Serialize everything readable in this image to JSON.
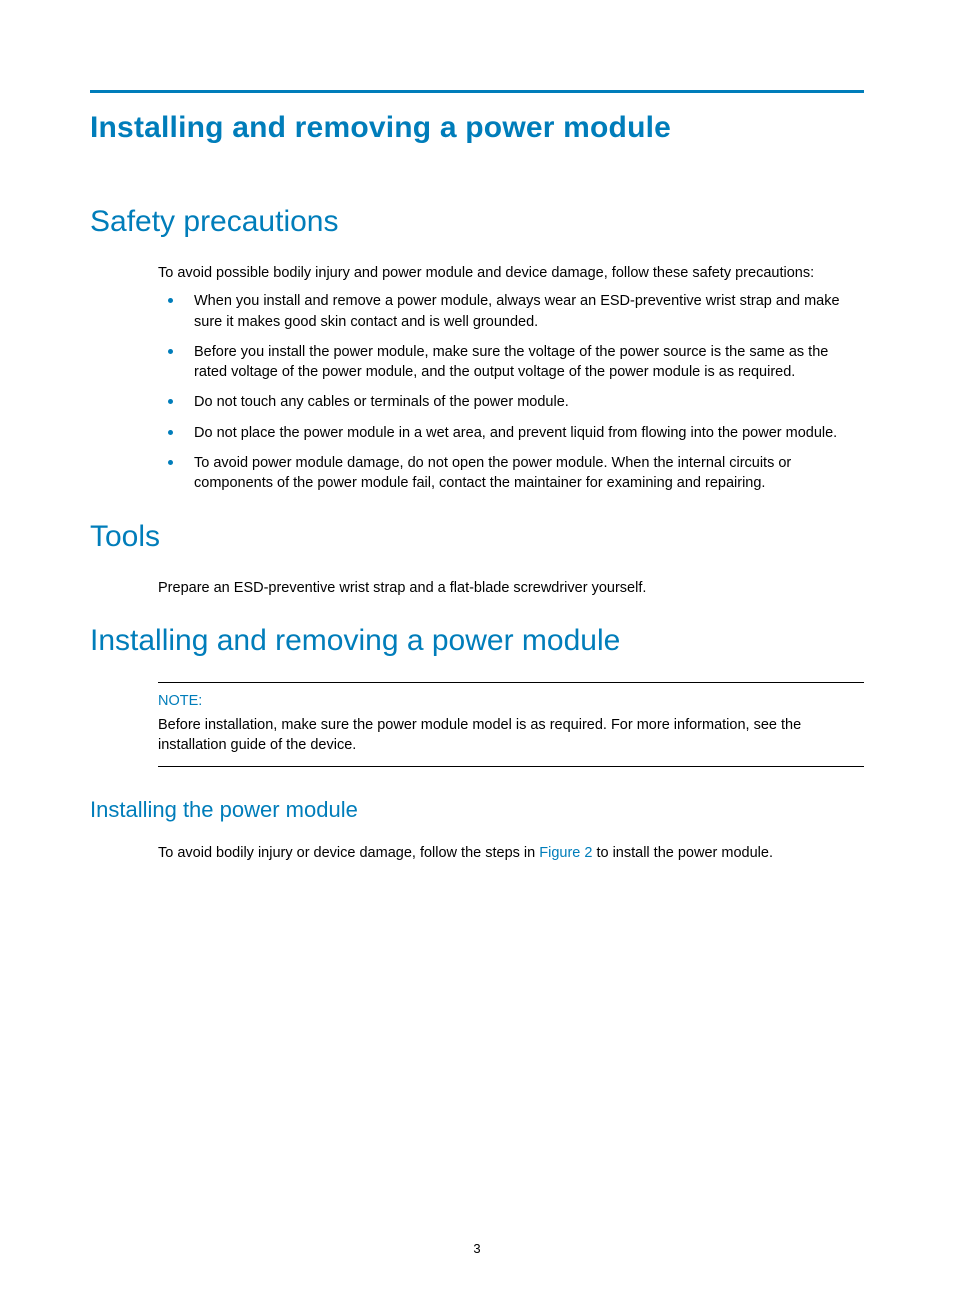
{
  "colors": {
    "accent": "#007dba",
    "text": "#000000",
    "background": "#ffffff"
  },
  "typography": {
    "h1_fontsize": 30,
    "h1_weight": "bold",
    "h2_fontsize": 30,
    "h2_weight": "normal",
    "h3_fontsize": 22,
    "h3_weight": "normal",
    "body_fontsize": 14.5,
    "font_family": "Arial, Helvetica, sans-serif"
  },
  "title": "Installing and removing a power module",
  "sections": {
    "safety": {
      "heading": "Safety precautions",
      "intro": "To avoid possible bodily injury and power module and device damage, follow these safety precautions:",
      "bullets": [
        "When you install and remove a power module, always wear an ESD-preventive wrist strap and make sure it makes good skin contact and is well grounded.",
        "Before you install the power module, make sure the voltage of the power source is the same as the rated voltage of the power module, and the output voltage of the power module is as required.",
        "Do not touch any cables or terminals of the power module.",
        "Do not place the power module in a wet area, and prevent liquid from flowing into the power module.",
        "To avoid power module damage, do not open the power module. When the internal circuits or components of the power module fail, contact the maintainer for examining and repairing."
      ]
    },
    "tools": {
      "heading": "Tools",
      "text": "Prepare an ESD-preventive wrist strap and a flat-blade screwdriver yourself."
    },
    "install_remove": {
      "heading": "Installing and removing a power module",
      "note_label": "NOTE:",
      "note_text": "Before installation, make sure the power module model is as required. For more information, see the installation guide of the device."
    },
    "install": {
      "heading": "Installing the power module",
      "text_pre": "To avoid bodily injury or device damage, follow the steps in ",
      "link": "Figure 2",
      "text_post": " to install the power module."
    }
  },
  "page_number": "3"
}
